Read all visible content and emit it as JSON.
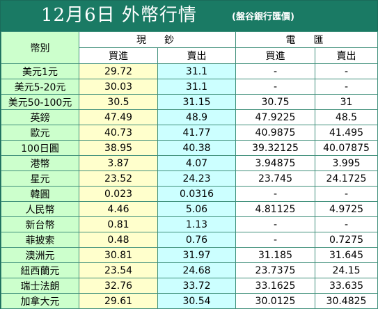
{
  "header": {
    "title": "12月6日 外幣行情",
    "source": "(盤谷銀行匯價)"
  },
  "table": {
    "corner_label": "幣別",
    "group_cash": "現　鈔",
    "group_wire": "電　匯",
    "buy_label": "買進",
    "sell_label": "賣出",
    "rows": [
      {
        "currency": "美元1元",
        "cash_buy": "29.72",
        "cash_sell": "31.1",
        "wire_buy": "-",
        "wire_sell": "-"
      },
      {
        "currency": "美元5-20元",
        "cash_buy": "30.03",
        "cash_sell": "31.1",
        "wire_buy": "-",
        "wire_sell": "-"
      },
      {
        "currency": "美元50-100元",
        "cash_buy": "30.5",
        "cash_sell": "31.15",
        "wire_buy": "30.75",
        "wire_sell": "31"
      },
      {
        "currency": "英鎊",
        "cash_buy": "47.49",
        "cash_sell": "48.9",
        "wire_buy": "47.9225",
        "wire_sell": "48.5"
      },
      {
        "currency": "歐元",
        "cash_buy": "40.73",
        "cash_sell": "41.77",
        "wire_buy": "40.9875",
        "wire_sell": "41.495"
      },
      {
        "currency": "100日圓",
        "cash_buy": "38.95",
        "cash_sell": "40.38",
        "wire_buy": "39.32125",
        "wire_sell": "40.07875"
      },
      {
        "currency": "港幣",
        "cash_buy": "3.87",
        "cash_sell": "4.07",
        "wire_buy": "3.94875",
        "wire_sell": "3.995"
      },
      {
        "currency": "星元",
        "cash_buy": "23.52",
        "cash_sell": "24.23",
        "wire_buy": "23.745",
        "wire_sell": "24.1725"
      },
      {
        "currency": "韓圓",
        "cash_buy": "0.023",
        "cash_sell": "0.0316",
        "wire_buy": "-",
        "wire_sell": "-"
      },
      {
        "currency": "人民幣",
        "cash_buy": "4.46",
        "cash_sell": "5.06",
        "wire_buy": "4.81125",
        "wire_sell": "4.9725"
      },
      {
        "currency": "新台幣",
        "cash_buy": "0.81",
        "cash_sell": "1.13",
        "wire_buy": "-",
        "wire_sell": "-"
      },
      {
        "currency": "菲披索",
        "cash_buy": "0.48",
        "cash_sell": "0.76",
        "wire_buy": "-",
        "wire_sell": "0.7275"
      },
      {
        "currency": "澳洲元",
        "cash_buy": "30.81",
        "cash_sell": "31.97",
        "wire_buy": "31.185",
        "wire_sell": "31.645"
      },
      {
        "currency": "紐西蘭元",
        "cash_buy": "23.54",
        "cash_sell": "24.68",
        "wire_buy": "23.7375",
        "wire_sell": "24.15"
      },
      {
        "currency": "瑞士法朗",
        "cash_buy": "32.76",
        "cash_sell": "33.72",
        "wire_buy": "33.1625",
        "wire_sell": "33.635"
      },
      {
        "currency": "加拿大元",
        "cash_buy": "29.61",
        "cash_sell": "30.54",
        "wire_buy": "30.0125",
        "wire_sell": "30.4825"
      }
    ]
  }
}
